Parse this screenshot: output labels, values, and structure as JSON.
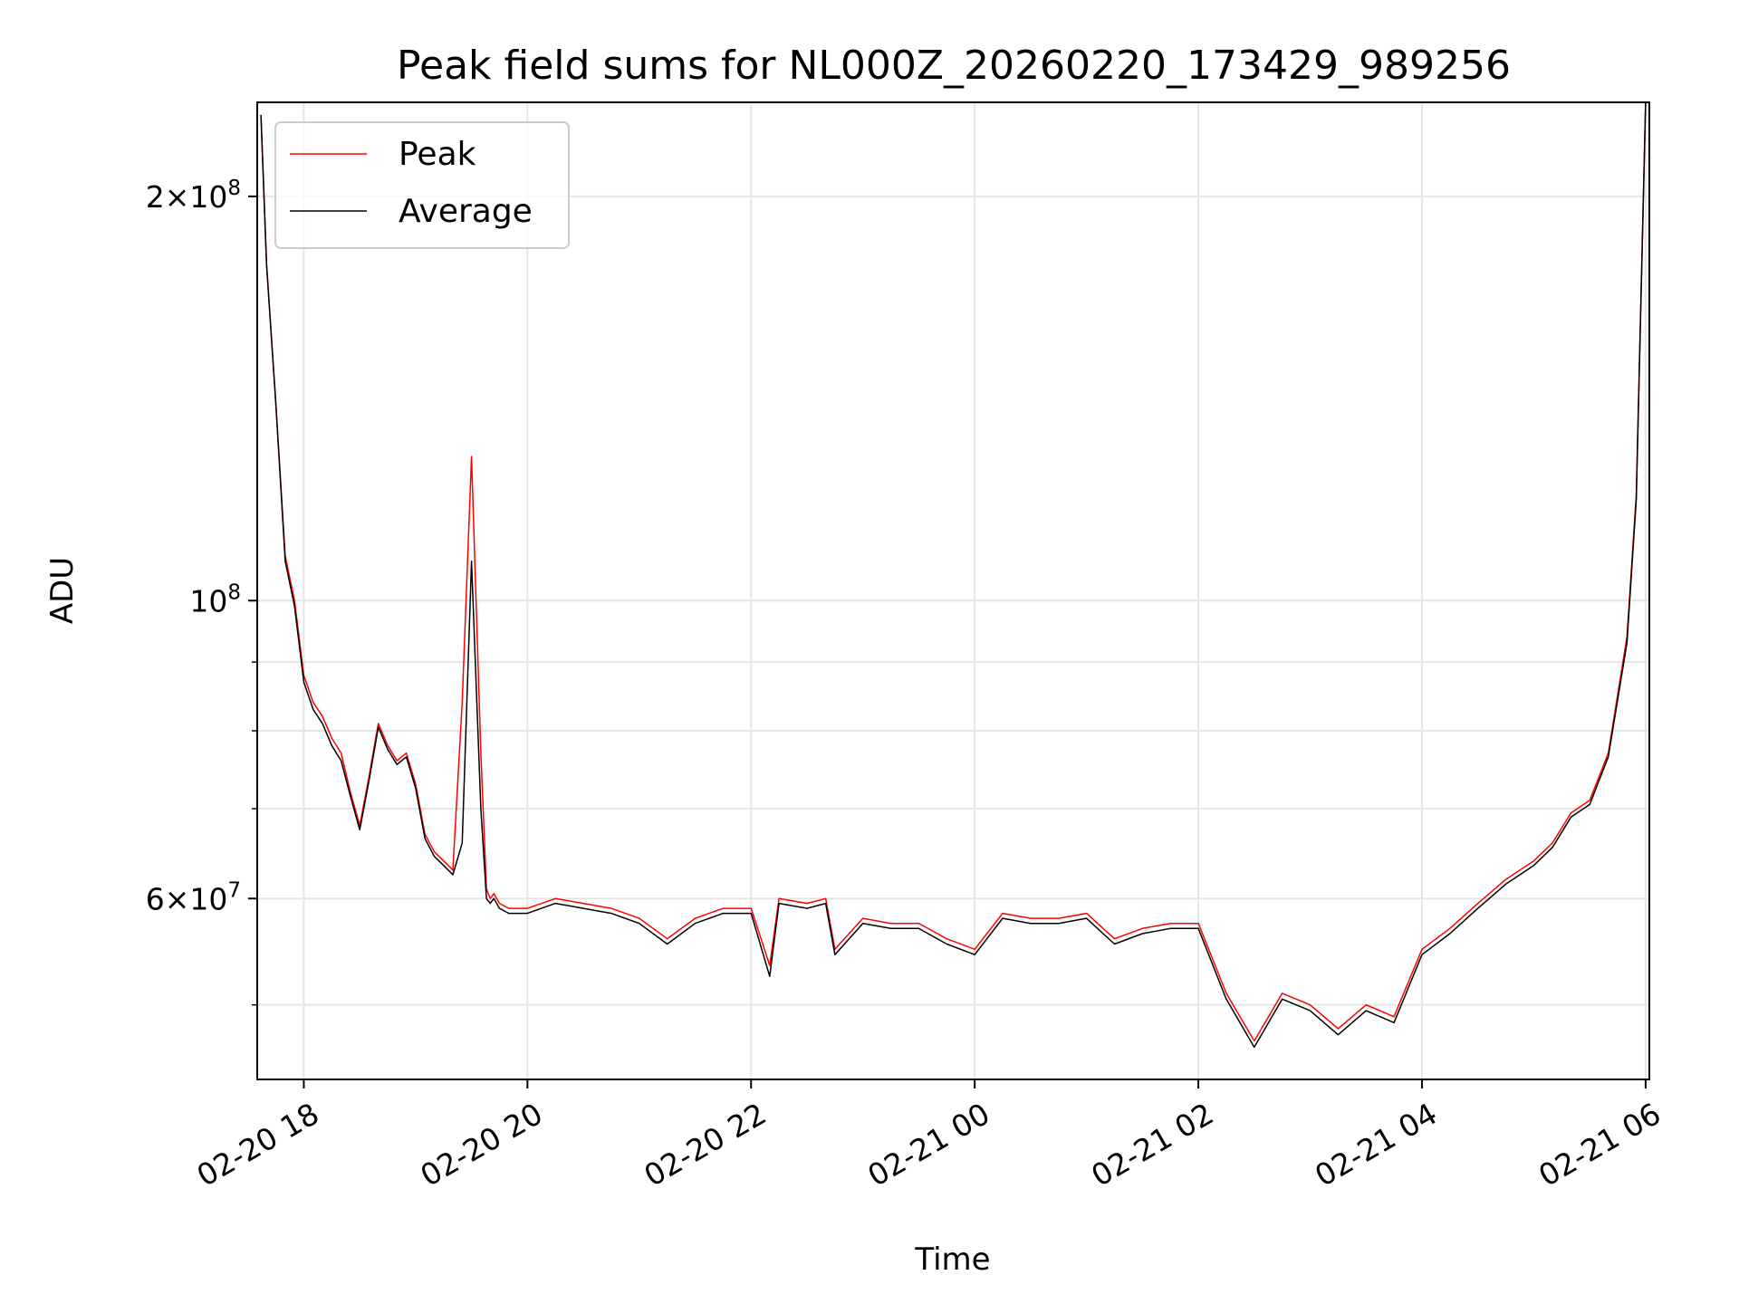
{
  "chart_data": {
    "type": "line",
    "title": "Peak field sums for NL000Z_20260220_173429_989256",
    "xlabel": "Time",
    "ylabel": "ADU",
    "y_scale": "log",
    "ylim": [
      44000000,
      235000000
    ],
    "xlim": [
      "2026-02-20 17:35",
      "2026-02-21 06:02"
    ],
    "grid": true,
    "legend_placement": "upper-left",
    "x_ticks": [
      "02-20 18",
      "02-20 20",
      "02-20 22",
      "02-21 00",
      "02-21 02",
      "02-21 04",
      "02-21 06"
    ],
    "x_tick_times": [
      "2026-02-20 18:00",
      "2026-02-20 20:00",
      "2026-02-20 22:00",
      "2026-02-21 00:00",
      "2026-02-21 02:00",
      "2026-02-21 04:00",
      "2026-02-21 06:00"
    ],
    "y_major_ticks": [
      {
        "value": 200000000,
        "mant": "2",
        "exp": "8"
      },
      {
        "value": 100000000,
        "mant": "",
        "exp": "8"
      },
      {
        "value": 60000000,
        "mant": "6",
        "exp": "7"
      }
    ],
    "y_minor_gridlines": [
      50000000,
      70000000,
      80000000,
      90000000
    ],
    "x": [
      "2026-02-20 17:37",
      "2026-02-20 17:40",
      "2026-02-20 17:45",
      "2026-02-20 17:50",
      "2026-02-20 17:55",
      "2026-02-20 18:00",
      "2026-02-20 18:05",
      "2026-02-20 18:10",
      "2026-02-20 18:15",
      "2026-02-20 18:20",
      "2026-02-20 18:25",
      "2026-02-20 18:30",
      "2026-02-20 18:35",
      "2026-02-20 18:40",
      "2026-02-20 18:45",
      "2026-02-20 18:50",
      "2026-02-20 18:55",
      "2026-02-20 19:00",
      "2026-02-20 19:05",
      "2026-02-20 19:10",
      "2026-02-20 19:15",
      "2026-02-20 19:20",
      "2026-02-20 19:25",
      "2026-02-20 19:30",
      "2026-02-20 19:35",
      "2026-02-20 19:38",
      "2026-02-20 19:40",
      "2026-02-20 19:42",
      "2026-02-20 19:45",
      "2026-02-20 19:50",
      "2026-02-20 20:00",
      "2026-02-20 20:15",
      "2026-02-20 20:30",
      "2026-02-20 20:45",
      "2026-02-20 21:00",
      "2026-02-20 21:15",
      "2026-02-20 21:30",
      "2026-02-20 21:45",
      "2026-02-20 22:00",
      "2026-02-20 22:10",
      "2026-02-20 22:15",
      "2026-02-20 22:30",
      "2026-02-20 22:40",
      "2026-02-20 22:45",
      "2026-02-20 23:00",
      "2026-02-20 23:15",
      "2026-02-20 23:30",
      "2026-02-20 23:45",
      "2026-02-21 00:00",
      "2026-02-21 00:15",
      "2026-02-21 00:30",
      "2026-02-21 00:45",
      "2026-02-21 01:00",
      "2026-02-21 01:15",
      "2026-02-21 01:30",
      "2026-02-21 01:45",
      "2026-02-21 02:00",
      "2026-02-21 02:15",
      "2026-02-21 02:30",
      "2026-02-21 02:45",
      "2026-02-21 03:00",
      "2026-02-21 03:15",
      "2026-02-21 03:30",
      "2026-02-21 03:45",
      "2026-02-21 04:00",
      "2026-02-21 04:15",
      "2026-02-21 04:30",
      "2026-02-21 04:45",
      "2026-02-21 05:00",
      "2026-02-21 05:10",
      "2026-02-21 05:20",
      "2026-02-21 05:30",
      "2026-02-21 05:40",
      "2026-02-21 05:50",
      "2026-02-21 05:55",
      "2026-02-21 06:00"
    ],
    "series": [
      {
        "name": "Peak",
        "color": "#ff0000",
        "values": [
          230000000,
          178000000,
          140000000,
          108000000,
          100000000,
          88000000,
          84000000,
          82000000,
          79000000,
          77000000,
          72000000,
          68000000,
          74000000,
          81000000,
          78000000,
          76000000,
          77000000,
          73000000,
          67000000,
          65000000,
          64000000,
          63000000,
          84000000,
          128000000,
          77000000,
          61000000,
          60000000,
          60500000,
          59500000,
          59000000,
          59000000,
          60000000,
          59500000,
          59000000,
          58000000,
          56000000,
          58000000,
          59000000,
          59000000,
          53500000,
          60000000,
          59500000,
          60000000,
          55000000,
          58000000,
          57500000,
          57500000,
          56000000,
          55000000,
          58500000,
          58000000,
          58000000,
          58500000,
          56000000,
          57000000,
          57500000,
          57500000,
          51000000,
          47000000,
          51000000,
          50000000,
          48000000,
          50000000,
          49000000,
          55000000,
          57000000,
          59500000,
          62000000,
          64000000,
          66000000,
          69500000,
          71000000,
          77000000,
          94000000,
          120000000,
          235000000
        ]
      },
      {
        "name": "Average",
        "color": "#000000",
        "values": [
          230000000,
          178000000,
          140000000,
          107000000,
          99000000,
          87000000,
          83000000,
          81000000,
          78000000,
          76000000,
          71500000,
          67500000,
          73500000,
          80500000,
          77500000,
          75500000,
          76500000,
          72500000,
          66500000,
          64500000,
          63500000,
          62500000,
          66000000,
          107000000,
          70000000,
          60000000,
          59500000,
          60000000,
          59000000,
          58500000,
          58500000,
          59500000,
          59000000,
          58500000,
          57500000,
          55500000,
          57500000,
          58500000,
          58500000,
          52500000,
          59500000,
          59000000,
          59500000,
          54500000,
          57500000,
          57000000,
          57000000,
          55500000,
          54500000,
          58000000,
          57500000,
          57500000,
          58000000,
          55500000,
          56500000,
          57000000,
          57000000,
          50500000,
          46500000,
          50500000,
          49500000,
          47500000,
          49500000,
          48500000,
          54500000,
          56500000,
          59000000,
          61500000,
          63500000,
          65500000,
          69000000,
          70500000,
          76500000,
          93000000,
          119000000,
          235000000
        ]
      }
    ]
  }
}
